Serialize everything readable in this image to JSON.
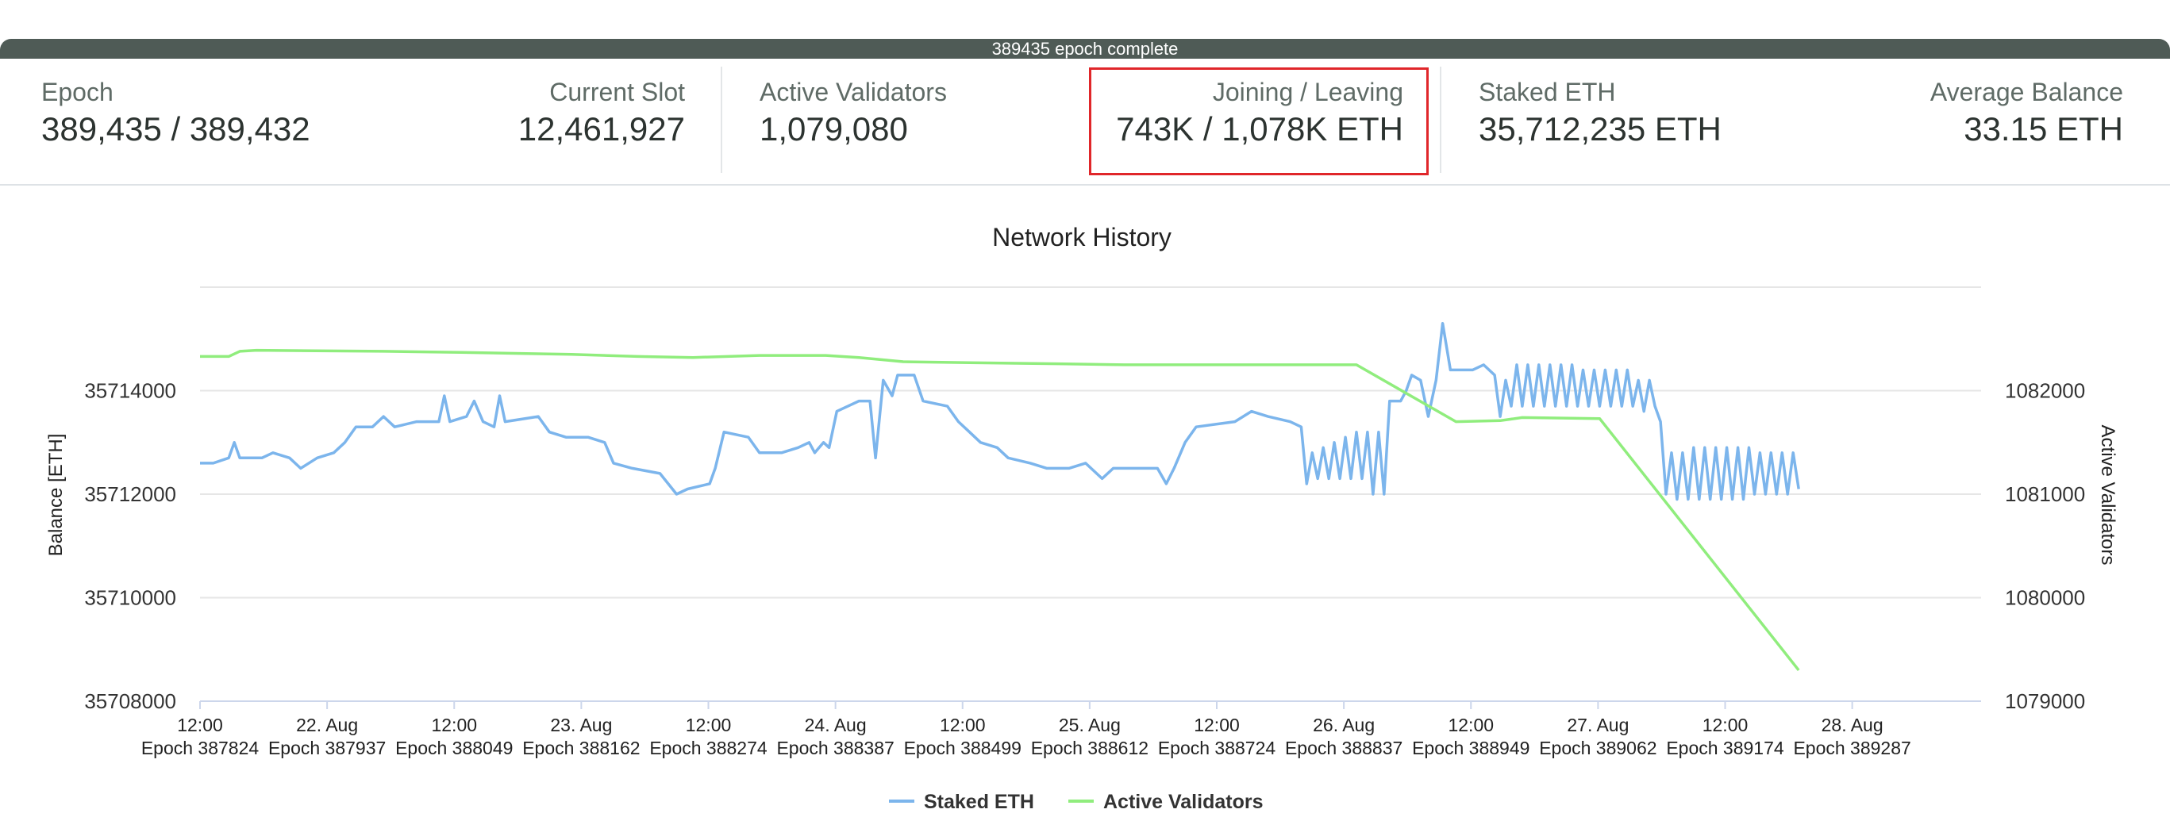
{
  "progress": {
    "label": "389435 epoch complete"
  },
  "stats": {
    "epoch": {
      "label": "Epoch",
      "value": "389,435 / 389,432"
    },
    "current_slot": {
      "label": "Current Slot",
      "value": "12,461,927"
    },
    "active_validators": {
      "label": "Active Validators",
      "value": "1,079,080"
    },
    "joining_leaving": {
      "label": "Joining / Leaving",
      "value": "743K / 1,078K ETH"
    },
    "staked_eth": {
      "label": "Staked ETH",
      "value": "35,712,235 ETH"
    },
    "average_balance": {
      "label": "Average Balance",
      "value": "33.15 ETH"
    }
  },
  "colors": {
    "staked": "#7cb5ec",
    "validators": "#90ed7d",
    "highlight": "#e0262a"
  },
  "chart_data": {
    "type": "line",
    "title": "Network History",
    "y_left_label": "Balance [ETH]",
    "y_right_label": "Active Validators",
    "y_left_ticks": [
      "35714000",
      "35712000",
      "35710000",
      "35708000"
    ],
    "y_right_ticks": [
      "1082000",
      "1081000",
      "1080000",
      "1079000"
    ],
    "y_left_range": [
      35708000,
      35716000
    ],
    "y_right_range": [
      1079000,
      1083000
    ],
    "x_range": [
      387824,
      389435
    ],
    "x_ticks": [
      {
        "date": "12:00",
        "epoch": "Epoch 387824"
      },
      {
        "date": "22. Aug",
        "epoch": "Epoch 387937"
      },
      {
        "date": "12:00",
        "epoch": "Epoch 388049"
      },
      {
        "date": "23. Aug",
        "epoch": "Epoch 388162"
      },
      {
        "date": "12:00",
        "epoch": "Epoch 388274"
      },
      {
        "date": "24. Aug",
        "epoch": "Epoch 388387"
      },
      {
        "date": "12:00",
        "epoch": "Epoch 388499"
      },
      {
        "date": "25. Aug",
        "epoch": "Epoch 388612"
      },
      {
        "date": "12:00",
        "epoch": "Epoch 388724"
      },
      {
        "date": "26. Aug",
        "epoch": "Epoch 388837"
      },
      {
        "date": "12:00",
        "epoch": "Epoch 388949"
      },
      {
        "date": "27. Aug",
        "epoch": "Epoch 389062"
      },
      {
        "date": "12:00",
        "epoch": "Epoch 389174"
      },
      {
        "date": "28. Aug",
        "epoch": "Epoch 389287"
      }
    ],
    "grid": true,
    "legend_position": "bottom-center",
    "series": [
      {
        "name": "Staked ETH",
        "axis": "left",
        "points": [
          [
            387824,
            35712600
          ],
          [
            387836,
            35712600
          ],
          [
            387850,
            35712700
          ],
          [
            387855,
            35713000
          ],
          [
            387860,
            35712700
          ],
          [
            387880,
            35712700
          ],
          [
            387890,
            35712800
          ],
          [
            387905,
            35712700
          ],
          [
            387915,
            35712500
          ],
          [
            387930,
            35712700
          ],
          [
            387945,
            35712800
          ],
          [
            387955,
            35713000
          ],
          [
            387965,
            35713300
          ],
          [
            387980,
            35713300
          ],
          [
            387990,
            35713500
          ],
          [
            388000,
            35713300
          ],
          [
            388020,
            35713400
          ],
          [
            388040,
            35713400
          ],
          [
            388045,
            35713900
          ],
          [
            388050,
            35713400
          ],
          [
            388065,
            35713500
          ],
          [
            388072,
            35713800
          ],
          [
            388080,
            35713400
          ],
          [
            388090,
            35713300
          ],
          [
            388095,
            35713900
          ],
          [
            388100,
            35713400
          ],
          [
            388130,
            35713500
          ],
          [
            388140,
            35713200
          ],
          [
            388155,
            35713100
          ],
          [
            388175,
            35713100
          ],
          [
            388190,
            35713000
          ],
          [
            388198,
            35712600
          ],
          [
            388215,
            35712500
          ],
          [
            388240,
            35712400
          ],
          [
            388255,
            35712000
          ],
          [
            388265,
            35712100
          ],
          [
            388285,
            35712200
          ],
          [
            388290,
            35712500
          ],
          [
            388298,
            35713200
          ],
          [
            388320,
            35713100
          ],
          [
            388330,
            35712800
          ],
          [
            388350,
            35712800
          ],
          [
            388365,
            35712900
          ],
          [
            388375,
            35713000
          ],
          [
            388380,
            35712800
          ],
          [
            388388,
            35713000
          ],
          [
            388393,
            35712900
          ],
          [
            388400,
            35713600
          ],
          [
            388420,
            35713800
          ],
          [
            388430,
            35713800
          ],
          [
            388435,
            35712700
          ],
          [
            388442,
            35714200
          ],
          [
            388450,
            35713900
          ],
          [
            388455,
            35714300
          ],
          [
            388470,
            35714300
          ],
          [
            388478,
            35713800
          ],
          [
            388500,
            35713700
          ],
          [
            388510,
            35713400
          ],
          [
            388520,
            35713200
          ],
          [
            388530,
            35713000
          ],
          [
            388545,
            35712900
          ],
          [
            388555,
            35712700
          ],
          [
            388575,
            35712600
          ],
          [
            388590,
            35712500
          ],
          [
            388610,
            35712500
          ],
          [
            388625,
            35712600
          ],
          [
            388640,
            35712300
          ],
          [
            388650,
            35712500
          ],
          [
            388680,
            35712500
          ],
          [
            388690,
            35712500
          ],
          [
            388698,
            35712200
          ],
          [
            388705,
            35712500
          ],
          [
            388715,
            35713000
          ],
          [
            388725,
            35713300
          ],
          [
            388760,
            35713400
          ],
          [
            388775,
            35713600
          ],
          [
            388790,
            35713500
          ],
          [
            388810,
            35713400
          ],
          [
            388820,
            35713300
          ],
          [
            388825,
            35712200
          ],
          [
            388830,
            35712800
          ],
          [
            388835,
            35712300
          ],
          [
            388840,
            35712900
          ],
          [
            388845,
            35712300
          ],
          [
            388850,
            35713000
          ],
          [
            388855,
            35712300
          ],
          [
            388860,
            35713100
          ],
          [
            388865,
            35712300
          ],
          [
            388870,
            35713200
          ],
          [
            388875,
            35712300
          ],
          [
            388880,
            35713200
          ],
          [
            388885,
            35712000
          ],
          [
            388890,
            35713200
          ],
          [
            388895,
            35712000
          ],
          [
            388900,
            35713800
          ],
          [
            388910,
            35713800
          ],
          [
            388915,
            35714000
          ],
          [
            388920,
            35714300
          ],
          [
            388928,
            35714200
          ],
          [
            388935,
            35713500
          ],
          [
            388942,
            35714200
          ],
          [
            388948,
            35715300
          ],
          [
            388955,
            35714400
          ],
          [
            388975,
            35714400
          ],
          [
            388985,
            35714500
          ],
          [
            388995,
            35714300
          ],
          [
            389000,
            35713500
          ],
          [
            389005,
            35714200
          ],
          [
            389010,
            35713700
          ],
          [
            389015,
            35714500
          ],
          [
            389020,
            35713700
          ],
          [
            389025,
            35714500
          ],
          [
            389030,
            35713700
          ],
          [
            389035,
            35714500
          ],
          [
            389040,
            35713700
          ],
          [
            389045,
            35714500
          ],
          [
            389050,
            35713700
          ],
          [
            389055,
            35714500
          ],
          [
            389060,
            35713700
          ],
          [
            389065,
            35714500
          ],
          [
            389070,
            35713700
          ],
          [
            389075,
            35714400
          ],
          [
            389080,
            35713700
          ],
          [
            389085,
            35714400
          ],
          [
            389090,
            35713700
          ],
          [
            389095,
            35714400
          ],
          [
            389100,
            35713700
          ],
          [
            389105,
            35714400
          ],
          [
            389110,
            35713700
          ],
          [
            389115,
            35714400
          ],
          [
            389120,
            35713700
          ],
          [
            389125,
            35714200
          ],
          [
            389130,
            35713600
          ],
          [
            389135,
            35714200
          ],
          [
            389140,
            35713700
          ],
          [
            389145,
            35713400
          ],
          [
            389150,
            35712000
          ],
          [
            389155,
            35712800
          ],
          [
            389160,
            35711900
          ],
          [
            389165,
            35712800
          ],
          [
            389170,
            35711900
          ],
          [
            389175,
            35712900
          ],
          [
            389180,
            35711900
          ],
          [
            389185,
            35712900
          ],
          [
            389190,
            35711900
          ],
          [
            389195,
            35712900
          ],
          [
            389200,
            35711900
          ],
          [
            389205,
            35712900
          ],
          [
            389210,
            35711900
          ],
          [
            389215,
            35712900
          ],
          [
            389220,
            35711900
          ],
          [
            389225,
            35712900
          ],
          [
            389230,
            35712000
          ],
          [
            389235,
            35712800
          ],
          [
            389240,
            35712000
          ],
          [
            389245,
            35712800
          ],
          [
            389250,
            35712000
          ],
          [
            389255,
            35712800
          ],
          [
            389260,
            35712000
          ],
          [
            389265,
            35712800
          ],
          [
            389270,
            35712100
          ]
        ]
      },
      {
        "name": "Active Validators",
        "axis": "right",
        "points": [
          [
            387824,
            1082330
          ],
          [
            387850,
            1082330
          ],
          [
            387860,
            1082380
          ],
          [
            387875,
            1082390
          ],
          [
            387990,
            1082380
          ],
          [
            388060,
            1082370
          ],
          [
            388160,
            1082350
          ],
          [
            388220,
            1082330
          ],
          [
            388270,
            1082320
          ],
          [
            388330,
            1082340
          ],
          [
            388390,
            1082340
          ],
          [
            388420,
            1082320
          ],
          [
            388460,
            1082280
          ],
          [
            388520,
            1082270
          ],
          [
            388600,
            1082260
          ],
          [
            388660,
            1082250
          ],
          [
            388730,
            1082250
          ],
          [
            388770,
            1082250
          ],
          [
            388870,
            1082250
          ],
          [
            388960,
            1081700
          ],
          [
            389000,
            1081710
          ],
          [
            389020,
            1081740
          ],
          [
            389090,
            1081730
          ],
          [
            389270,
            1079300
          ]
        ]
      }
    ]
  }
}
